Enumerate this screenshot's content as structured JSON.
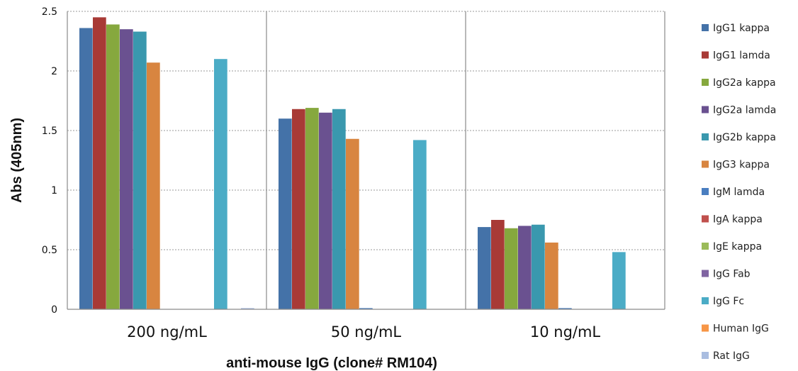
{
  "chart_data": {
    "type": "bar",
    "title": "",
    "xlabel": "anti-mouse IgG (clone# RM104)",
    "ylabel": "Abs (405nm)",
    "ylim": [
      0,
      2.5
    ],
    "yticks": [
      "0",
      "0.5",
      "1",
      "1.5",
      "2",
      "2.5"
    ],
    "categories": [
      "200 ng/mL",
      "50 ng/mL",
      "10 ng/mL"
    ],
    "grid": "horizontal dashed",
    "legend_position": "right",
    "series": [
      {
        "name": "IgG1 kappa",
        "color": "#4472a8",
        "values": [
          2.36,
          1.6,
          0.69
        ]
      },
      {
        "name": "IgG1 lamda",
        "color": "#a83a36",
        "values": [
          2.45,
          1.68,
          0.75
        ]
      },
      {
        "name": "IgG2a kappa",
        "color": "#86a83e",
        "values": [
          2.39,
          1.69,
          0.68
        ]
      },
      {
        "name": "IgG2a lamda",
        "color": "#6a5190",
        "values": [
          2.35,
          1.65,
          0.7
        ]
      },
      {
        "name": "IgG2b kappa",
        "color": "#3a98ae",
        "values": [
          2.33,
          1.68,
          0.71
        ]
      },
      {
        "name": "IgG3 kappa",
        "color": "#d88540",
        "values": [
          2.07,
          1.43,
          0.56
        ]
      },
      {
        "name": "IgM lamda",
        "color": "#4a7ec0",
        "values": [
          0.0,
          0.01,
          0.01
        ]
      },
      {
        "name": "IgA kappa",
        "color": "#c0504d",
        "values": [
          0.0,
          0.0,
          0.0
        ]
      },
      {
        "name": "IgE kappa",
        "color": "#9bbb59",
        "values": [
          0.0,
          0.0,
          0.0
        ]
      },
      {
        "name": "IgG Fab",
        "color": "#8064a2",
        "values": [
          0.0,
          0.0,
          0.0
        ]
      },
      {
        "name": "IgG Fc",
        "color": "#4bacc6",
        "values": [
          2.1,
          1.42,
          0.48
        ]
      },
      {
        "name": "Human IgG",
        "color": "#f79646",
        "values": [
          0.0,
          0.0,
          0.0
        ]
      },
      {
        "name": "Rat IgG",
        "color": "#a9bde0",
        "values": [
          0.01,
          0.0,
          0.0
        ]
      }
    ]
  }
}
